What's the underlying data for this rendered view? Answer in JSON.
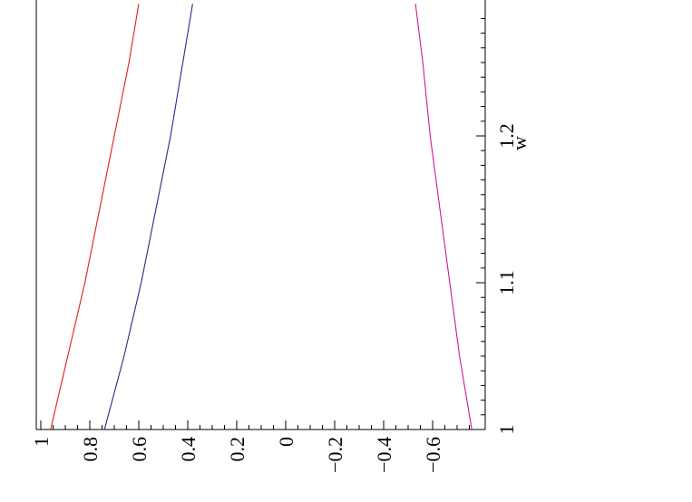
{
  "chart_data": {
    "type": "line",
    "orientation": "rotated 90° counter-clockwise",
    "xlabel": "w",
    "x_ticks": [
      "1",
      "1.1",
      "1.2"
    ],
    "y_ticks": [
      "1",
      "0.8",
      "0.6",
      "0.4",
      "0.2",
      "0",
      "−0.2",
      "−0.4",
      "−0.6"
    ],
    "x_tick_values": [
      1.0,
      1.1,
      1.2
    ],
    "y_tick_values": [
      1.0,
      0.8,
      0.6,
      0.4,
      0.2,
      0.0,
      -0.2,
      -0.4,
      -0.6
    ],
    "xlim": [
      1.0,
      1.29
    ],
    "ylim": [
      -0.78,
      1.0
    ],
    "grid": false,
    "series": [
      {
        "color": "#e0201a",
        "x": [
          1.0,
          1.05,
          1.1,
          1.15,
          1.2,
          1.25,
          1.29
        ],
        "y": [
          0.96,
          0.89,
          0.82,
          0.76,
          0.7,
          0.64,
          0.6
        ]
      },
      {
        "color": "#2a2a8a",
        "x": [
          1.0,
          1.05,
          1.1,
          1.15,
          1.2,
          1.25,
          1.29
        ],
        "y": [
          0.74,
          0.66,
          0.59,
          0.53,
          0.47,
          0.42,
          0.38
        ]
      },
      {
        "color": "#d4169a",
        "x": [
          1.0,
          1.05,
          1.1,
          1.15,
          1.2,
          1.25,
          1.29
        ],
        "y": [
          -0.76,
          -0.71,
          -0.67,
          -0.63,
          -0.59,
          -0.56,
          -0.53
        ]
      }
    ]
  }
}
